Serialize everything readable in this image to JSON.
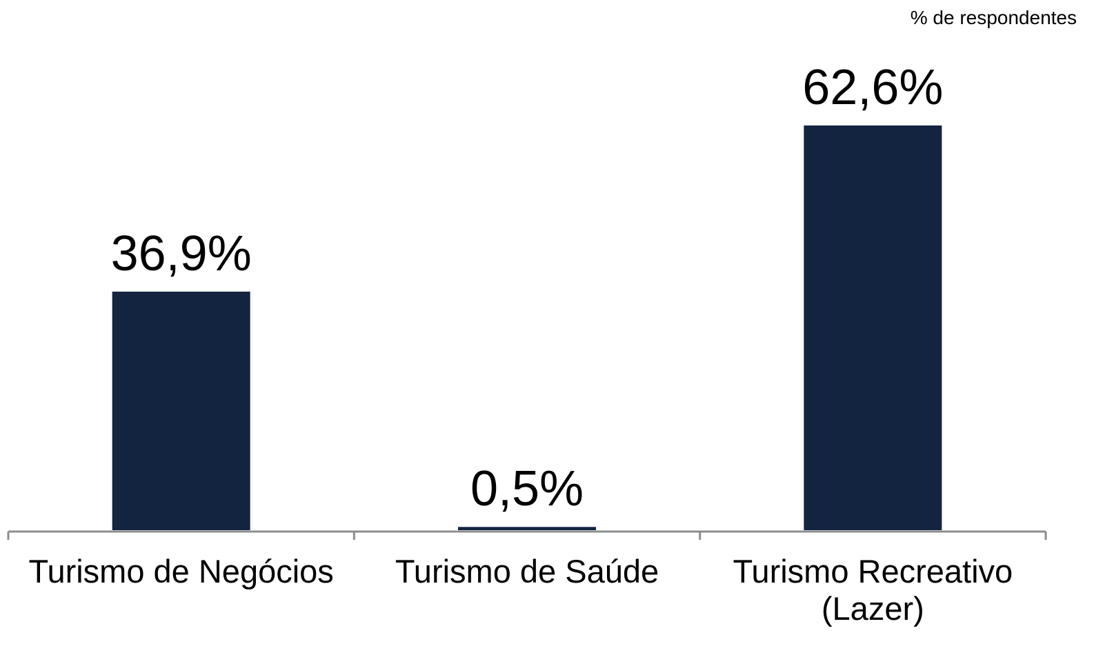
{
  "chart_data": {
    "type": "bar",
    "subtitle": "% de respondentes",
    "categories": [
      "Turismo de Negócios",
      "Turismo de Saúde",
      "Turismo Recreativo (Lazer)"
    ],
    "values": [
      36.9,
      0.5,
      62.6
    ],
    "value_labels": [
      "36,9%",
      "0,5%",
      "62,6%"
    ],
    "color": "#12243f"
  }
}
